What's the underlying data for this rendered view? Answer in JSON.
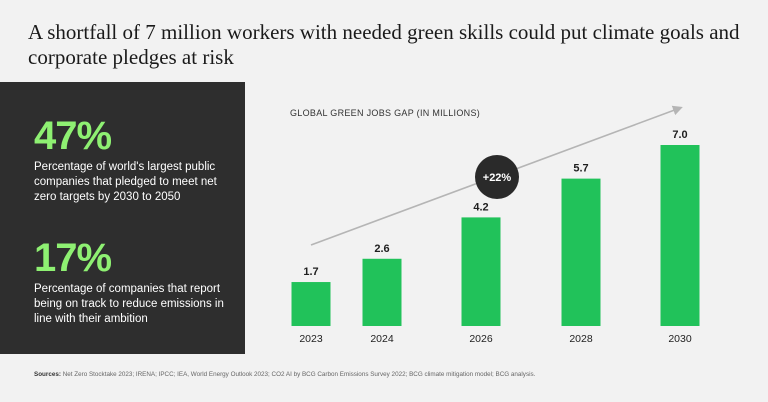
{
  "header": {
    "title": "A shortfall of 7 million workers with needed green skills could put climate goals and corporate pledges at risk"
  },
  "stats": [
    {
      "value": "47%",
      "description": "Percentage of world's largest public companies that pledged to meet net zero targets by 2030 to 2050"
    },
    {
      "value": "17%",
      "description": "Percentage of companies that report being on track to reduce emissions in line with their ambition"
    }
  ],
  "footer": {
    "sources_label": "Sources:",
    "sources_text": "Net Zero Stocktake 2023; IRENA; IPCC; IEA, World Energy Outlook 2023; CO2 AI by BCG Carbon Emissions Survey 2022; BCG climate mitigation model; BCG analysis."
  },
  "colors": {
    "bar": "#21c25a",
    "stat_accent": "#8ef072",
    "panel": "#2e2e2e",
    "badge": "#2a2a2a",
    "arrow": "#b5b5b5"
  },
  "chart_data": {
    "type": "bar",
    "title": "GLOBAL GREEN JOBS GAP (IN MILLIONS)",
    "categories": [
      "2023",
      "2024",
      "2026",
      "2028",
      "2030"
    ],
    "values": [
      1.7,
      2.6,
      4.2,
      5.7,
      7.0
    ],
    "value_labels": [
      "1.7",
      "2.6",
      "4.2",
      "5.7",
      "7.0"
    ],
    "ylim": [
      0,
      7.0
    ],
    "annotation": "+22%",
    "xlabel": "",
    "ylabel": ""
  }
}
